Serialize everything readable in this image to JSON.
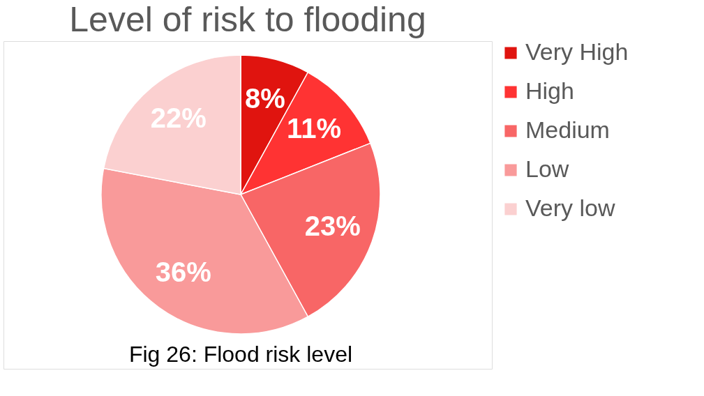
{
  "chart_data": {
    "type": "pie",
    "title": "Level of risk to flooding",
    "categories": [
      "Very High",
      "High",
      "Medium",
      "Low",
      "Very low"
    ],
    "values": [
      8,
      11,
      23,
      36,
      22
    ],
    "colors": [
      "#e0140f",
      "#ff3333",
      "#f86666",
      "#f99a9a",
      "#fbd0d0"
    ],
    "value_labels": [
      "8%",
      "11%",
      "23%",
      "36%",
      "22%"
    ],
    "legend": "right",
    "annotations": [
      "Fig 26: Flood risk level"
    ]
  }
}
